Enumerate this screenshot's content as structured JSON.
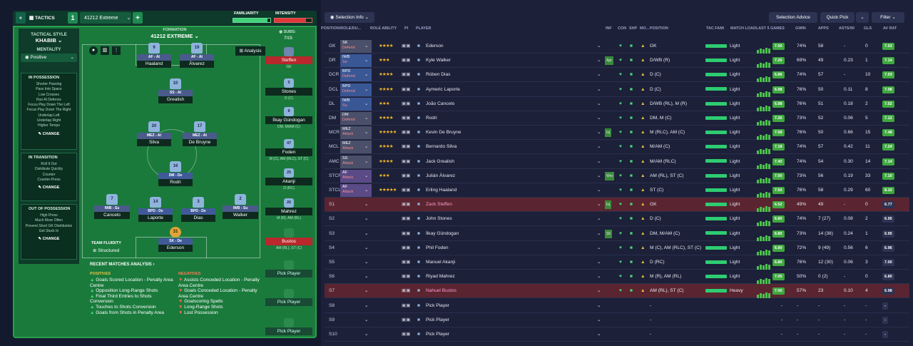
{
  "tactics": {
    "title": "TACTICS",
    "number": "1",
    "formation_name": "41212 Extreme",
    "familiarity_label": "FAMILIARITY",
    "intensity_label": "INTENSITY",
    "formation_label": "FORMATION",
    "formation": "41212 EXTREME",
    "subs_label": "SUBS:",
    "subs_value": "7/15",
    "analysis": "Analysis"
  },
  "sidebar": {
    "tactical_style_label": "TACTICAL STYLE",
    "style": "KHABIB",
    "mentality_label": "MENTALITY",
    "mentality": "Positive",
    "sections": [
      {
        "title": "IN POSSESSION",
        "items": [
          "Shorter Passing",
          "Pass Into Space",
          "Low Crosses",
          "Run At Defence",
          "Focus Play Down The Left",
          "Focus Play Down The Right",
          "Underlap Left",
          "Underlap Right",
          "Higher Tempo"
        ],
        "change": "CHANGE"
      },
      {
        "title": "IN TRANSITION",
        "items": [
          "Roll It Out",
          "Distribute Quickly",
          "Counter",
          "Counter-Press"
        ],
        "change": "CHANGE"
      },
      {
        "title": "OUT OF POSSESSION",
        "items": [
          "High Press",
          "Much More Often",
          "Prevent Short GK Distribution",
          "Get Stuck In"
        ],
        "change": "CHANGE"
      }
    ]
  },
  "pitch": [
    {
      "num": "9",
      "role": "AF - At",
      "name": "Haaland"
    },
    {
      "num": "19",
      "role": "AF - At",
      "name": "Álvarez"
    },
    {
      "num": "10",
      "role": "SS - At",
      "name": "Grealish"
    },
    {
      "num": "20",
      "role": "MEZ - At",
      "name": "Silva"
    },
    {
      "num": "17",
      "role": "MEZ - At",
      "name": "De Bruyne"
    },
    {
      "num": "16",
      "role": "DM - De",
      "name": "Rodri"
    },
    {
      "num": "7",
      "role": "IWB - Su",
      "name": "Cancelo"
    },
    {
      "num": "14",
      "role": "BPD - De",
      "name": "Laporte"
    },
    {
      "num": "3",
      "role": "BPD - De",
      "name": "Dias"
    },
    {
      "num": "2",
      "role": "IWB - Su",
      "name": "Walker"
    },
    {
      "num": "31",
      "role": "SK - De",
      "name": "Ederson"
    }
  ],
  "fluidity": {
    "label": "TEAM FLUIDITY",
    "value": "Structured"
  },
  "subs": [
    {
      "num": "",
      "name": "Steffen",
      "pos": "GK"
    },
    {
      "num": "5",
      "name": "Stones",
      "pos": "D (C)"
    },
    {
      "num": "8",
      "name": "İlkay Gündogan",
      "pos": "DM, M/AM (C)"
    },
    {
      "num": "47",
      "name": "Foden",
      "pos": "M (C), AM (RLC), ST (C)"
    },
    {
      "num": "25",
      "name": "Akanji",
      "pos": "D (RC)"
    },
    {
      "num": "26",
      "name": "Mahrez",
      "pos": "M (R), AM (RL)"
    },
    {
      "num": "",
      "name": "Bustos",
      "pos": "AM (RL), ST (C)"
    },
    {
      "num": "",
      "name": "Pick Player",
      "pos": ""
    },
    {
      "num": "",
      "name": "Pick Player",
      "pos": ""
    },
    {
      "num": "",
      "name": "Pick Player",
      "pos": ""
    }
  ],
  "recent": {
    "title": "RECENT MATCHES ANALYSIS",
    "positives_label": "POSITIVES",
    "negatives_label": "NEGATIVES",
    "positives": [
      "Goals Scored Location - Penalty Area Centre",
      "Opposition Long-Range Shots",
      "Final Third Entries to Shots Conversion",
      "Touches to Shots Conversion",
      "Goals from Shots in Penalty Area"
    ],
    "negatives": [
      "Assists Conceded Location - Penalty Area Centre",
      "Goals Conceded Location - Penalty Area Centre",
      "Goalscoring Spells",
      "Long-Range Shots",
      "Lost Possession"
    ]
  },
  "toolbar": {
    "selection_info": "Selection Info",
    "selection_advice": "Selection Advice",
    "quick_pick": "Quick Pick",
    "filter": "Filter"
  },
  "columns": [
    "POSITION/ROLE/DU...",
    "ROLE ABILITY",
    "PI",
    "PLAYER",
    "INF",
    "CON",
    "SHP",
    "MO...",
    "POSITION",
    "TAC FAMI",
    "MATCH LOAD",
    "LAST 5 GAMES",
    "GWIN",
    "APPS",
    "ASTS/90",
    "GLS",
    "AV RAT"
  ],
  "rows": [
    {
      "pos": "GK",
      "role": "SK",
      "duty": "Defend",
      "stars": "★★★★",
      "name": "Ederson",
      "inf": "",
      "position": "GK",
      "load": "Light",
      "form": "7.00",
      "gwin": "74%",
      "apps": "58",
      "asts": "-",
      "gls": "0",
      "rat": "7.03"
    },
    {
      "pos": "DR",
      "role": "IWB",
      "duty": "Su",
      "stars": "★★★",
      "name": "Kyle Walker",
      "inf": "Apr",
      "position": "D/WB (R)",
      "load": "Light",
      "form": "7.20",
      "gwin": "69%",
      "apps": "49",
      "asts": "0.23",
      "gls": "1",
      "rat": "7.14"
    },
    {
      "pos": "DCR",
      "role": "BPD",
      "duty": "Defend",
      "stars": "★★★★",
      "name": "Rúben Dias",
      "inf": "",
      "position": "D (C)",
      "load": "Light",
      "form": "6.86",
      "gwin": "74%",
      "apps": "57",
      "asts": "-",
      "gls": "10",
      "rat": "7.03"
    },
    {
      "pos": "DCL",
      "role": "BPD",
      "duty": "Defend",
      "stars": "★★★★",
      "name": "Aymeric Laporte",
      "inf": "",
      "position": "D (C)",
      "load": "Light",
      "form": "6.98",
      "gwin": "76%",
      "apps": "50",
      "asts": "0.11",
      "gls": "8",
      "rat": "7.08"
    },
    {
      "pos": "DL",
      "role": "IWB",
      "duty": "Su",
      "stars": "★★★",
      "name": "João Cancelo",
      "inf": "",
      "position": "D/WB (RL), M (R)",
      "load": "Light",
      "form": "6.98",
      "gwin": "76%",
      "apps": "51",
      "asts": "0.18",
      "gls": "2",
      "rat": "7.02"
    },
    {
      "pos": "DM",
      "role": "DM",
      "duty": "Defend",
      "stars": "★★★★",
      "name": "Rodri",
      "inf": "",
      "position": "DM, M (C)",
      "load": "Light",
      "form": "7.30",
      "gwin": "73%",
      "apps": "52",
      "asts": "0.06",
      "gls": "5",
      "rat": "7.12"
    },
    {
      "pos": "MCR",
      "role": "MEZ",
      "duty": "Attack",
      "stars": "★★★★★",
      "name": "Kevin De Bruyne",
      "inf": "Inj",
      "position": "M (RLC), AM (C)",
      "load": "Light",
      "form": "7.58",
      "gwin": "76%",
      "apps": "50",
      "asts": "0.66",
      "gls": "15",
      "rat": "7.48"
    },
    {
      "pos": "MCL",
      "role": "MEZ",
      "duty": "Attack",
      "stars": "★★★★",
      "name": "Bernardo Silva",
      "inf": "",
      "position": "M/AM (C)",
      "load": "Light",
      "form": "7.18",
      "gwin": "74%",
      "apps": "57",
      "asts": "0.42",
      "gls": "11",
      "rat": "7.24"
    },
    {
      "pos": "AMC",
      "role": "SS",
      "duty": "Attack",
      "stars": "★★★★",
      "name": "Jack Grealish",
      "inf": "",
      "position": "M/AM (RLC)",
      "load": "Light",
      "form": "7.40",
      "gwin": "74%",
      "apps": "54",
      "asts": "0.30",
      "gls": "14",
      "rat": "7.14"
    },
    {
      "pos": "STCR",
      "role": "AF",
      "duty": "Attack",
      "stars": "★★★",
      "name": "Julián Álvarez",
      "inf": "Wnt",
      "position": "AM (RL), ST (C)",
      "load": "Light",
      "form": "7.00",
      "gwin": "73%",
      "apps": "56",
      "asts": "0.19",
      "gls": "33",
      "rat": "7.10"
    },
    {
      "pos": "STCL",
      "role": "AF",
      "duty": "Attack",
      "stars": "★★★★★",
      "name": "Erling Haaland",
      "inf": "",
      "position": "ST (C)",
      "load": "Light",
      "form": "7.50",
      "gwin": "76%",
      "apps": "58",
      "asts": "0.29",
      "gls": "60",
      "rat": "8.10"
    },
    {
      "pos": "S1",
      "role": "",
      "duty": "",
      "stars": "",
      "name": "Zack Steffen",
      "inf": "Inj",
      "position": "GK",
      "load": "Light",
      "form": "6.52",
      "gwin": "49%",
      "apps": "49",
      "asts": "-",
      "gls": "0",
      "rat": "6.77"
    },
    {
      "pos": "S2",
      "role": "",
      "duty": "",
      "stars": "",
      "name": "John Stones",
      "inf": "",
      "position": "D (C)",
      "load": "Light",
      "form": "6.80",
      "gwin": "74%",
      "apps": "7 (27)",
      "asts": "0.08",
      "gls": "2",
      "rat": "6.95"
    },
    {
      "pos": "S3",
      "role": "",
      "duty": "",
      "stars": "",
      "name": "İlkay Gündogan",
      "inf": "Slt",
      "position": "DM, M/AM (C)",
      "load": "Light",
      "form": "6.80",
      "gwin": "73%",
      "apps": "14 (38)",
      "asts": "0.24",
      "gls": "1",
      "rat": "6.95"
    },
    {
      "pos": "S4",
      "role": "",
      "duty": "",
      "stars": "",
      "name": "Phil Foden",
      "inf": "",
      "position": "M (C), AM (RLC), ST (C)",
      "load": "Light",
      "form": "6.90",
      "gwin": "72%",
      "apps": "9 (49)",
      "asts": "0.56",
      "gls": "6",
      "rat": "6.96"
    },
    {
      "pos": "S5",
      "role": "",
      "duty": "",
      "stars": "",
      "name": "Manuel Akanji",
      "inf": "",
      "position": "D (RC)",
      "load": "Light",
      "form": "6.80",
      "gwin": "76%",
      "apps": "12 (30)",
      "asts": "0.06",
      "gls": "3",
      "rat": "7.00"
    },
    {
      "pos": "S6",
      "role": "",
      "duty": "",
      "stars": "",
      "name": "Riyad Mahrez",
      "inf": "",
      "position": "M (R), AM (RL)",
      "load": "Light",
      "form": "7.05",
      "gwin": "50%",
      "apps": "0 (2)",
      "asts": "-",
      "gls": "0",
      "rat": "6.80"
    },
    {
      "pos": "S7",
      "role": "",
      "duty": "",
      "stars": "",
      "name": "Nahuel Bustos",
      "inf": "",
      "position": "AM (RL), ST (C)",
      "load": "Heavy",
      "form": "7.00",
      "gwin": "57%",
      "apps": "23",
      "asts": "0.10",
      "gls": "4",
      "rat": "6.98"
    },
    {
      "pos": "S8",
      "role": "",
      "duty": "",
      "stars": "",
      "name": "Pick Player",
      "inf": "",
      "position": "-",
      "load": "",
      "form": "",
      "gwin": "-",
      "apps": "-",
      "asts": "-",
      "gls": "-",
      "rat": "-"
    },
    {
      "pos": "S9",
      "role": "",
      "duty": "",
      "stars": "",
      "name": "Pick Player",
      "inf": "",
      "position": "-",
      "load": "",
      "form": "",
      "gwin": "-",
      "apps": "-",
      "asts": "-",
      "gls": "-",
      "rat": "-"
    },
    {
      "pos": "S10",
      "role": "",
      "duty": "",
      "stars": "",
      "name": "Pick Player",
      "inf": "",
      "position": "-",
      "load": "",
      "form": "",
      "gwin": "-",
      "apps": "-",
      "asts": "-",
      "gls": "-",
      "rat": "-"
    }
  ]
}
